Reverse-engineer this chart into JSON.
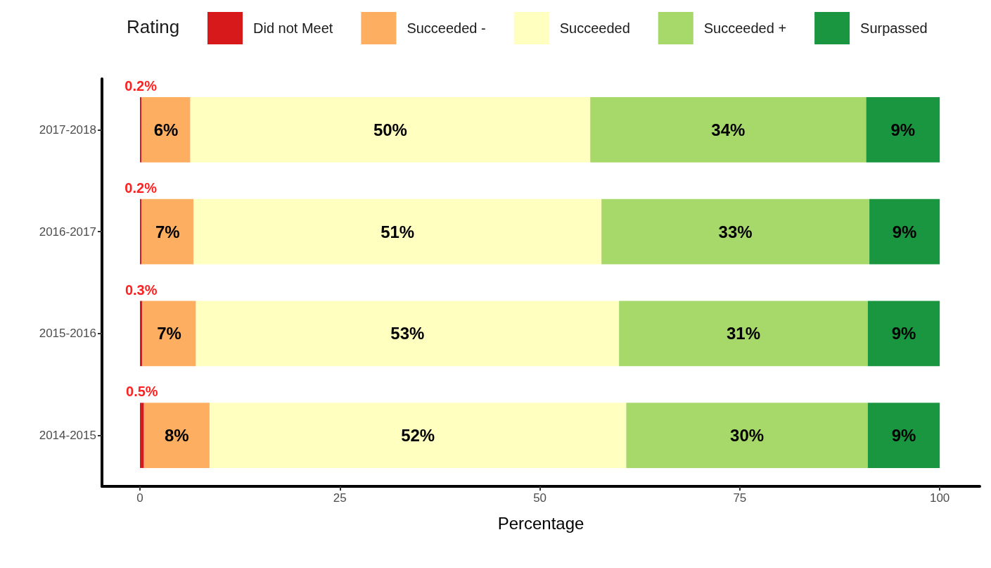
{
  "chart_data": {
    "type": "bar",
    "orientation": "horizontal",
    "stacked": true,
    "categories": [
      "2017-2018",
      "2016-2017",
      "2015-2016",
      "2014-2015"
    ],
    "xlabel": "Percentage",
    "legend_title": "Rating",
    "legend": "top",
    "xlim": [
      -4.75,
      105
    ],
    "xticks": [
      0,
      25,
      50,
      75,
      100
    ],
    "series": [
      {
        "name": "Did not Meet",
        "color": "#d7191c",
        "values": [
          0.2,
          0.2,
          0.3,
          0.5
        ],
        "value_labels": [
          "0.2%",
          "0.2%",
          "0.3%",
          "0.5%"
        ]
      },
      {
        "name": "Succeeded -",
        "color": "#fdae61",
        "values": [
          6.1,
          6.5,
          6.7,
          8.2
        ],
        "value_labels": [
          "6%",
          "7%",
          "7%",
          "8%"
        ]
      },
      {
        "name": "Succeeded",
        "color": "#ffffbf",
        "values": [
          50.0,
          51.0,
          52.9,
          52.1
        ],
        "value_labels": [
          "50%",
          "51%",
          "53%",
          "52%"
        ]
      },
      {
        "name": "Succeeded +",
        "color": "#a6d96a",
        "values": [
          34.5,
          33.5,
          31.1,
          30.2
        ],
        "value_labels": [
          "34%",
          "33%",
          "31%",
          "30%"
        ]
      },
      {
        "name": "Surpassed",
        "color": "#1a9641",
        "values": [
          9.2,
          8.8,
          9.0,
          9.0
        ],
        "value_labels": [
          "9%",
          "9%",
          "9%",
          "9%"
        ]
      }
    ]
  }
}
